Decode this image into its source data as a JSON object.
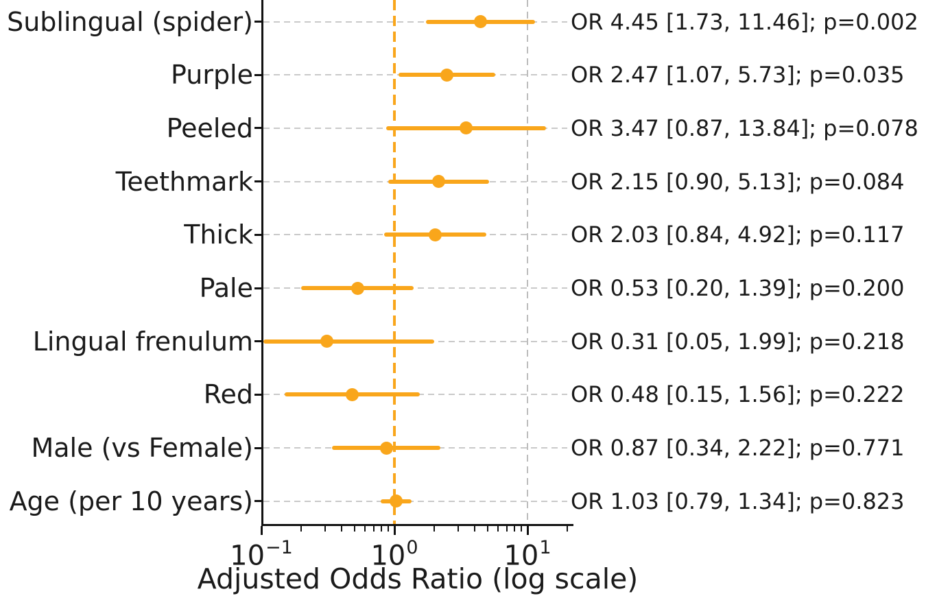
{
  "chart_data": {
    "type": "scatter",
    "subtype": "forest-plot",
    "title": "",
    "xlabel": "Adjusted Odds Ratio (log scale)",
    "ylabel": "",
    "x_scale": "log",
    "xlim": [
      0.1,
      21.5
    ],
    "grid": "dashed",
    "legend": "none",
    "reference_line_x": 1.0,
    "x_gridline_values": [
      10
    ],
    "x_major_ticks": [
      {
        "value": 0.1,
        "base": "10",
        "exp": "−1"
      },
      {
        "value": 1,
        "base": "10",
        "exp": "0"
      },
      {
        "value": 10,
        "base": "10",
        "exp": "1"
      }
    ],
    "x_minor_ticks": [
      0.2,
      0.3,
      0.4,
      0.5,
      0.6,
      0.7,
      0.8,
      0.9,
      2,
      3,
      4,
      5,
      6,
      7,
      8,
      9,
      20
    ],
    "rows": [
      {
        "label": "Sublingual (spider)",
        "or": 4.45,
        "ci_low": 1.73,
        "ci_high": 11.46,
        "p": "0.002",
        "annotation": "OR 4.45 [1.73, 11.46]; p=0.002"
      },
      {
        "label": "Purple",
        "or": 2.47,
        "ci_low": 1.07,
        "ci_high": 5.73,
        "p": "0.035",
        "annotation": "OR 2.47 [1.07, 5.73]; p=0.035"
      },
      {
        "label": "Peeled",
        "or": 3.47,
        "ci_low": 0.87,
        "ci_high": 13.84,
        "p": "0.078",
        "annotation": "OR 3.47 [0.87, 13.84]; p=0.078"
      },
      {
        "label": "Teethmark",
        "or": 2.15,
        "ci_low": 0.9,
        "ci_high": 5.13,
        "p": "0.084",
        "annotation": "OR 2.15 [0.90, 5.13]; p=0.084"
      },
      {
        "label": "Thick",
        "or": 2.03,
        "ci_low": 0.84,
        "ci_high": 4.92,
        "p": "0.117",
        "annotation": "OR 2.03 [0.84, 4.92]; p=0.117"
      },
      {
        "label": "Pale",
        "or": 0.53,
        "ci_low": 0.2,
        "ci_high": 1.39,
        "p": "0.200",
        "annotation": "OR 0.53 [0.20, 1.39]; p=0.200"
      },
      {
        "label": "Lingual frenulum",
        "or": 0.31,
        "ci_low": 0.05,
        "ci_high": 1.99,
        "p": "0.218",
        "annotation": "OR 0.31 [0.05, 1.99]; p=0.218"
      },
      {
        "label": "Red",
        "or": 0.48,
        "ci_low": 0.15,
        "ci_high": 1.56,
        "p": "0.222",
        "annotation": "OR 0.48 [0.15, 1.56]; p=0.222"
      },
      {
        "label": "Male (vs Female)",
        "or": 0.87,
        "ci_low": 0.34,
        "ci_high": 2.22,
        "p": "0.771",
        "annotation": "OR 0.87 [0.34, 2.22]; p=0.771"
      },
      {
        "label": "Age (per 10 years)",
        "or": 1.03,
        "ci_low": 0.79,
        "ci_high": 1.34,
        "p": "0.823",
        "annotation": "OR 1.03 [0.79, 1.34]; p=0.823"
      }
    ],
    "colors": {
      "accent": "#F9A61B",
      "row_grid": "#c9c9c9",
      "x_grid": "#bdbdbd",
      "spine": "#111111",
      "text": "#1a1a1a"
    }
  }
}
